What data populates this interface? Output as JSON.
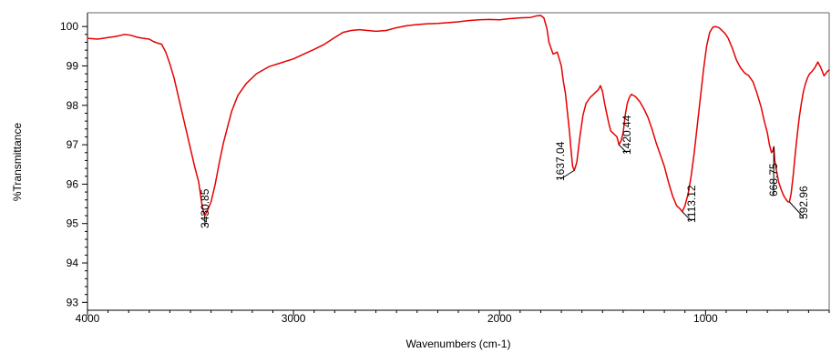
{
  "colors": {
    "spectrum": "#e60000",
    "axis": "#000000",
    "background": "#ffffff",
    "frame": "#666666"
  },
  "chart_data": {
    "type": "line",
    "xlabel": "Wavenumbers (cm-1)",
    "ylabel": "%Transmittance",
    "xlim": [
      4000,
      400
    ],
    "ylim": [
      92.8,
      100.35
    ],
    "x_reversed": true,
    "grid": false,
    "legend": "none",
    "x_ticks": [
      4000,
      3000,
      2000,
      1000
    ],
    "y_ticks": [
      93,
      94,
      95,
      96,
      97,
      98,
      99,
      100
    ],
    "series": [
      {
        "points": [
          [
            4000,
            99.7
          ],
          [
            3950,
            99.68
          ],
          [
            3900,
            99.72
          ],
          [
            3860,
            99.75
          ],
          [
            3820,
            99.8
          ],
          [
            3790,
            99.78
          ],
          [
            3760,
            99.73
          ],
          [
            3730,
            99.7
          ],
          [
            3700,
            99.68
          ],
          [
            3680,
            99.62
          ],
          [
            3660,
            99.58
          ],
          [
            3640,
            99.55
          ],
          [
            3620,
            99.35
          ],
          [
            3600,
            99.05
          ],
          [
            3580,
            98.7
          ],
          [
            3560,
            98.25
          ],
          [
            3540,
            97.8
          ],
          [
            3520,
            97.35
          ],
          [
            3500,
            96.9
          ],
          [
            3480,
            96.45
          ],
          [
            3460,
            96.05
          ],
          [
            3445,
            95.5
          ],
          [
            3435,
            95.25
          ],
          [
            3430.85,
            95.2
          ],
          [
            3420,
            95.3
          ],
          [
            3400,
            95.55
          ],
          [
            3380,
            96.0
          ],
          [
            3360,
            96.55
          ],
          [
            3340,
            97.05
          ],
          [
            3320,
            97.45
          ],
          [
            3300,
            97.85
          ],
          [
            3270,
            98.25
          ],
          [
            3230,
            98.55
          ],
          [
            3180,
            98.8
          ],
          [
            3120,
            98.98
          ],
          [
            3060,
            99.08
          ],
          [
            3000,
            99.18
          ],
          [
            2950,
            99.3
          ],
          [
            2900,
            99.42
          ],
          [
            2850,
            99.55
          ],
          [
            2800,
            99.72
          ],
          [
            2760,
            99.85
          ],
          [
            2720,
            99.9
          ],
          [
            2680,
            99.92
          ],
          [
            2640,
            99.9
          ],
          [
            2600,
            99.88
          ],
          [
            2550,
            99.9
          ],
          [
            2500,
            99.97
          ],
          [
            2450,
            100.02
          ],
          [
            2400,
            100.05
          ],
          [
            2350,
            100.07
          ],
          [
            2300,
            100.08
          ],
          [
            2250,
            100.1
          ],
          [
            2200,
            100.12
          ],
          [
            2150,
            100.15
          ],
          [
            2100,
            100.17
          ],
          [
            2050,
            100.18
          ],
          [
            2000,
            100.17
          ],
          [
            1950,
            100.2
          ],
          [
            1900,
            100.22
          ],
          [
            1850,
            100.23
          ],
          [
            1820,
            100.27
          ],
          [
            1800,
            100.28
          ],
          [
            1785,
            100.22
          ],
          [
            1770,
            99.95
          ],
          [
            1760,
            99.6
          ],
          [
            1750,
            99.45
          ],
          [
            1740,
            99.3
          ],
          [
            1720,
            99.35
          ],
          [
            1700,
            99.0
          ],
          [
            1690,
            98.6
          ],
          [
            1680,
            98.3
          ],
          [
            1670,
            97.8
          ],
          [
            1660,
            97.3
          ],
          [
            1650,
            96.7
          ],
          [
            1645,
            96.45
          ],
          [
            1637.04,
            96.35
          ],
          [
            1625,
            96.55
          ],
          [
            1610,
            97.2
          ],
          [
            1595,
            97.75
          ],
          [
            1580,
            98.05
          ],
          [
            1560,
            98.2
          ],
          [
            1540,
            98.3
          ],
          [
            1520,
            98.4
          ],
          [
            1510,
            98.5
          ],
          [
            1500,
            98.35
          ],
          [
            1490,
            98.05
          ],
          [
            1480,
            97.8
          ],
          [
            1470,
            97.55
          ],
          [
            1460,
            97.35
          ],
          [
            1450,
            97.3
          ],
          [
            1440,
            97.25
          ],
          [
            1430,
            97.2
          ],
          [
            1420.44,
            97.0
          ],
          [
            1410,
            97.1
          ],
          [
            1400,
            97.3
          ],
          [
            1390,
            97.75
          ],
          [
            1380,
            98.05
          ],
          [
            1370,
            98.2
          ],
          [
            1360,
            98.28
          ],
          [
            1340,
            98.22
          ],
          [
            1320,
            98.1
          ],
          [
            1300,
            97.92
          ],
          [
            1280,
            97.7
          ],
          [
            1260,
            97.4
          ],
          [
            1240,
            97.05
          ],
          [
            1220,
            96.75
          ],
          [
            1200,
            96.45
          ],
          [
            1180,
            96.05
          ],
          [
            1160,
            95.7
          ],
          [
            1140,
            95.45
          ],
          [
            1125,
            95.38
          ],
          [
            1113.12,
            95.3
          ],
          [
            1100,
            95.45
          ],
          [
            1085,
            95.75
          ],
          [
            1070,
            96.2
          ],
          [
            1055,
            96.8
          ],
          [
            1040,
            97.5
          ],
          [
            1025,
            98.2
          ],
          [
            1010,
            98.9
          ],
          [
            995,
            99.5
          ],
          [
            980,
            99.85
          ],
          [
            965,
            99.98
          ],
          [
            950,
            100.0
          ],
          [
            935,
            99.97
          ],
          [
            920,
            99.9
          ],
          [
            905,
            99.82
          ],
          [
            890,
            99.7
          ],
          [
            870,
            99.45
          ],
          [
            850,
            99.15
          ],
          [
            830,
            98.95
          ],
          [
            810,
            98.82
          ],
          [
            790,
            98.75
          ],
          [
            770,
            98.6
          ],
          [
            750,
            98.3
          ],
          [
            730,
            97.95
          ],
          [
            715,
            97.6
          ],
          [
            700,
            97.3
          ],
          [
            690,
            97.0
          ],
          [
            680,
            96.8
          ],
          [
            673,
            96.85
          ],
          [
            668.75,
            96.95
          ],
          [
            664,
            96.6
          ],
          [
            656,
            96.35
          ],
          [
            645,
            96.05
          ],
          [
            632,
            95.85
          ],
          [
            620,
            95.7
          ],
          [
            608,
            95.6
          ],
          [
            600,
            95.55
          ],
          [
            592.96,
            95.55
          ],
          [
            585,
            95.75
          ],
          [
            575,
            96.2
          ],
          [
            565,
            96.75
          ],
          [
            555,
            97.25
          ],
          [
            545,
            97.7
          ],
          [
            535,
            98.05
          ],
          [
            525,
            98.35
          ],
          [
            515,
            98.55
          ],
          [
            505,
            98.7
          ],
          [
            495,
            98.8
          ],
          [
            485,
            98.85
          ],
          [
            470,
            98.95
          ],
          [
            455,
            99.1
          ],
          [
            440,
            98.95
          ],
          [
            425,
            98.75
          ],
          [
            410,
            98.85
          ],
          [
            400,
            98.9
          ]
        ]
      }
    ],
    "annotations": [
      {
        "text": "3430.85",
        "x": 3430.85,
        "y": 95.2
      },
      {
        "text": "1637.04",
        "x": 1637.04,
        "y": 96.35
      },
      {
        "text": "1420.44",
        "x": 1420.44,
        "y": 97.0
      },
      {
        "text": "1113.12",
        "x": 1113.12,
        "y": 95.3
      },
      {
        "text": "668.75",
        "x": 668.75,
        "y": 96.95
      },
      {
        "text": "592.96",
        "x": 592.96,
        "y": 95.55
      }
    ]
  }
}
